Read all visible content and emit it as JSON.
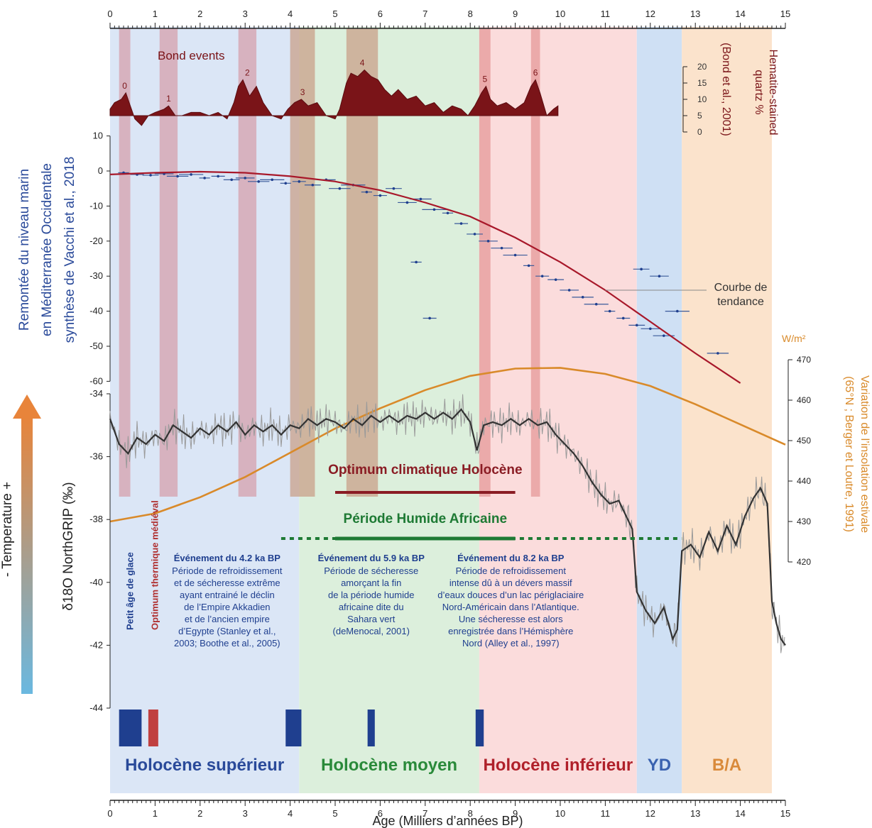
{
  "chart_data": {
    "type": "line",
    "age_axis": {
      "label": "Age (Milliers d’années BP)",
      "range": [
        0,
        15
      ],
      "ticks": [
        "0",
        "1",
        "2",
        "3",
        "4",
        "5",
        "6",
        "7",
        "8",
        "9",
        "10",
        "11",
        "12",
        "13",
        "14",
        "15"
      ]
    },
    "periods": [
      {
        "label": "Holocène supérieur",
        "from": 0,
        "to": 4.2,
        "color": "#dbe6f6",
        "text_color": "#2a4a9a"
      },
      {
        "label": "Holocène moyen",
        "from": 4.2,
        "to": 8.2,
        "color": "#dcefdc",
        "text_color": "#2a8a3a"
      },
      {
        "label": "Holocène inférieur",
        "from": 8.2,
        "to": 11.7,
        "color": "#fbdcdc",
        "text_color": "#b0202a"
      },
      {
        "label": "YD",
        "from": 11.7,
        "to": 12.7,
        "color": "#cfe0f4",
        "text_color": "#3a62b0"
      },
      {
        "label": "B/A",
        "from": 12.7,
        "to": 14.7,
        "color": "#fbe3cc",
        "text_color": "#d98a3a"
      }
    ],
    "bond_events": {
      "title": "Bond events",
      "axis_label": "Hematite-stained quartz %",
      "axis_source": "(Bond et al., 2001)",
      "ticks": [
        "0",
        "5",
        "10",
        "15",
        "20"
      ],
      "events": [
        {
          "label": "0",
          "from": 0.2,
          "to": 0.45,
          "peak": 12
        },
        {
          "label": "1",
          "from": 1.1,
          "to": 1.5,
          "peak": 8
        },
        {
          "label": "2",
          "from": 2.85,
          "to": 3.25,
          "peak": 16
        },
        {
          "label": "3",
          "from": 4.0,
          "to": 4.55,
          "peak": 10
        },
        {
          "label": "4",
          "from": 5.25,
          "to": 5.95,
          "peak": 19
        },
        {
          "label": "5",
          "from": 8.2,
          "to": 8.45,
          "peak": 14
        },
        {
          "label": "6",
          "from": 9.35,
          "to": 9.55,
          "peak": 16
        }
      ],
      "series": [
        [
          0.0,
          7
        ],
        [
          0.1,
          9
        ],
        [
          0.25,
          10
        ],
        [
          0.35,
          12
        ],
        [
          0.45,
          8
        ],
        [
          0.55,
          4
        ],
        [
          0.7,
          2
        ],
        [
          0.85,
          5
        ],
        [
          1.0,
          6
        ],
        [
          1.2,
          7
        ],
        [
          1.3,
          8
        ],
        [
          1.45,
          5
        ],
        [
          1.6,
          5
        ],
        [
          1.8,
          6
        ],
        [
          2.0,
          6
        ],
        [
          2.2,
          5
        ],
        [
          2.4,
          6
        ],
        [
          2.6,
          4
        ],
        [
          2.75,
          9
        ],
        [
          2.85,
          14
        ],
        [
          2.95,
          16
        ],
        [
          3.1,
          11
        ],
        [
          3.25,
          14
        ],
        [
          3.4,
          9
        ],
        [
          3.6,
          5
        ],
        [
          3.8,
          4
        ],
        [
          3.95,
          7
        ],
        [
          4.1,
          9
        ],
        [
          4.25,
          10
        ],
        [
          4.4,
          8
        ],
        [
          4.6,
          9
        ],
        [
          4.8,
          5
        ],
        [
          5.0,
          4
        ],
        [
          5.1,
          7
        ],
        [
          5.25,
          15
        ],
        [
          5.35,
          18
        ],
        [
          5.5,
          17
        ],
        [
          5.65,
          19
        ],
        [
          5.8,
          17
        ],
        [
          5.95,
          16
        ],
        [
          6.1,
          13
        ],
        [
          6.25,
          11
        ],
        [
          6.4,
          13
        ],
        [
          6.6,
          10
        ],
        [
          6.8,
          11
        ],
        [
          7.0,
          8
        ],
        [
          7.2,
          9
        ],
        [
          7.4,
          6
        ],
        [
          7.6,
          8
        ],
        [
          7.8,
          7
        ],
        [
          7.95,
          5
        ],
        [
          8.1,
          8
        ],
        [
          8.25,
          12
        ],
        [
          8.35,
          14
        ],
        [
          8.45,
          10
        ],
        [
          8.6,
          8
        ],
        [
          8.8,
          9
        ],
        [
          9.0,
          7
        ],
        [
          9.2,
          9
        ],
        [
          9.35,
          14
        ],
        [
          9.45,
          16
        ],
        [
          9.55,
          12
        ],
        [
          9.7,
          5
        ],
        [
          9.85,
          7
        ],
        [
          9.95,
          8
        ]
      ]
    },
    "sea_level": {
      "label_lines": [
        "Remontée du niveau marin",
        "en Méditerranée Occidentale",
        "synthèse de Vacchi et al., 2018"
      ],
      "ticks": [
        "10",
        "0",
        "-10",
        "-20",
        "-30",
        "-40",
        "-50",
        "-60"
      ],
      "range": [
        -60,
        10
      ],
      "trend_label_lines": [
        "Courbe de",
        "tendance"
      ],
      "trend": [
        [
          0.0,
          -1
        ],
        [
          1,
          -0.5
        ],
        [
          2,
          -0.2
        ],
        [
          3,
          -0.5
        ],
        [
          4,
          -1.5
        ],
        [
          5,
          -3
        ],
        [
          6,
          -5.5
        ],
        [
          7,
          -9
        ],
        [
          8,
          -13
        ],
        [
          9,
          -19
        ],
        [
          10,
          -26
        ],
        [
          11,
          -34
        ],
        [
          12,
          -43
        ],
        [
          13,
          -52
        ],
        [
          14,
          -60.5
        ]
      ],
      "observations": [
        [
          0.3,
          -0.5
        ],
        [
          0.6,
          -1
        ],
        [
          0.9,
          -1.2
        ],
        [
          1.2,
          -0.8
        ],
        [
          1.5,
          -1.5
        ],
        [
          1.8,
          -1
        ],
        [
          2.1,
          -2
        ],
        [
          2.4,
          -1.5
        ],
        [
          2.7,
          -2.5
        ],
        [
          3.0,
          -2
        ],
        [
          3.3,
          -3
        ],
        [
          3.6,
          -2.5
        ],
        [
          3.9,
          -3.5
        ],
        [
          4.2,
          -3
        ],
        [
          4.5,
          -4
        ],
        [
          4.8,
          -2.5
        ],
        [
          5.1,
          -5
        ],
        [
          5.4,
          -4
        ],
        [
          5.7,
          -6
        ],
        [
          6.0,
          -7
        ],
        [
          6.3,
          -5
        ],
        [
          6.6,
          -9
        ],
        [
          6.9,
          -8
        ],
        [
          7.2,
          -11
        ],
        [
          7.5,
          -12
        ],
        [
          7.8,
          -15
        ],
        [
          8.1,
          -18
        ],
        [
          8.4,
          -20
        ],
        [
          8.7,
          -22
        ],
        [
          9.0,
          -24
        ],
        [
          9.3,
          -27
        ],
        [
          9.6,
          -30
        ],
        [
          9.9,
          -31
        ],
        [
          10.2,
          -34
        ],
        [
          10.5,
          -36
        ],
        [
          10.8,
          -38
        ],
        [
          11.1,
          -40
        ],
        [
          11.4,
          -42
        ],
        [
          11.7,
          -44
        ],
        [
          12.0,
          -45
        ],
        [
          12.3,
          -47
        ],
        [
          12.6,
          -40
        ],
        [
          6.8,
          -26
        ],
        [
          7.1,
          -42
        ],
        [
          11.8,
          -28
        ],
        [
          12.2,
          -30
        ],
        [
          13.5,
          -52
        ]
      ]
    },
    "ngrip": {
      "label": "δ18O NorthGRIP (‰)",
      "ticks": [
        "-34",
        "-36",
        "-38",
        "-40",
        "-42",
        "-44"
      ],
      "range": [
        -44,
        -34
      ],
      "series": [
        [
          0.0,
          -34.8
        ],
        [
          0.2,
          -35.6
        ],
        [
          0.4,
          -35.9
        ],
        [
          0.6,
          -35.4
        ],
        [
          0.8,
          -35.6
        ],
        [
          1.0,
          -35.3
        ],
        [
          1.2,
          -35.5
        ],
        [
          1.4,
          -35.0
        ],
        [
          1.6,
          -35.2
        ],
        [
          1.8,
          -35.4
        ],
        [
          2.0,
          -35.1
        ],
        [
          2.2,
          -35.3
        ],
        [
          2.4,
          -35.0
        ],
        [
          2.6,
          -35.2
        ],
        [
          2.8,
          -34.9
        ],
        [
          3.0,
          -35.3
        ],
        [
          3.2,
          -35.0
        ],
        [
          3.4,
          -35.2
        ],
        [
          3.6,
          -35.0
        ],
        [
          3.8,
          -35.3
        ],
        [
          4.0,
          -35.0
        ],
        [
          4.2,
          -35.1
        ],
        [
          4.4,
          -34.8
        ],
        [
          4.6,
          -35.0
        ],
        [
          4.8,
          -34.8
        ],
        [
          5.0,
          -34.9
        ],
        [
          5.2,
          -35.1
        ],
        [
          5.4,
          -34.8
        ],
        [
          5.6,
          -35.0
        ],
        [
          5.8,
          -34.7
        ],
        [
          6.0,
          -34.9
        ],
        [
          6.2,
          -34.7
        ],
        [
          6.4,
          -34.9
        ],
        [
          6.6,
          -34.7
        ],
        [
          6.8,
          -34.8
        ],
        [
          7.0,
          -34.6
        ],
        [
          7.2,
          -34.8
        ],
        [
          7.4,
          -34.6
        ],
        [
          7.6,
          -34.8
        ],
        [
          7.8,
          -34.5
        ],
        [
          8.0,
          -34.9
        ],
        [
          8.15,
          -35.8
        ],
        [
          8.3,
          -35.0
        ],
        [
          8.5,
          -34.9
        ],
        [
          8.7,
          -35.0
        ],
        [
          8.9,
          -34.8
        ],
        [
          9.1,
          -35.0
        ],
        [
          9.3,
          -34.8
        ],
        [
          9.5,
          -35.0
        ],
        [
          9.7,
          -34.9
        ],
        [
          9.9,
          -35.3
        ],
        [
          10.1,
          -35.6
        ],
        [
          10.3,
          -35.9
        ],
        [
          10.5,
          -36.3
        ],
        [
          10.7,
          -36.8
        ],
        [
          10.9,
          -37.2
        ],
        [
          11.1,
          -37.5
        ],
        [
          11.3,
          -37.4
        ],
        [
          11.5,
          -38.0
        ],
        [
          11.6,
          -38.3
        ],
        [
          11.7,
          -40.3
        ],
        [
          11.9,
          -40.9
        ],
        [
          12.1,
          -41.3
        ],
        [
          12.3,
          -40.8
        ],
        [
          12.5,
          -41.8
        ],
        [
          12.6,
          -41.5
        ],
        [
          12.7,
          -39.0
        ],
        [
          12.9,
          -38.8
        ],
        [
          13.1,
          -39.2
        ],
        [
          13.3,
          -38.4
        ],
        [
          13.5,
          -39.0
        ],
        [
          13.7,
          -38.2
        ],
        [
          13.9,
          -38.8
        ],
        [
          14.1,
          -37.9
        ],
        [
          14.3,
          -37.3
        ],
        [
          14.45,
          -37.0
        ],
        [
          14.6,
          -37.5
        ],
        [
          14.7,
          -40.6
        ],
        [
          14.8,
          -41.3
        ],
        [
          14.9,
          -41.8
        ],
        [
          15.0,
          -42.0
        ]
      ]
    },
    "insolation": {
      "unit": "W/m²",
      "label_lines": [
        "Variation de l’insolation estivale",
        "(65°N ; Berger et Loutre, 1991)"
      ],
      "ticks": [
        "470",
        "460",
        "450",
        "440",
        "430",
        "420"
      ],
      "range": [
        420,
        470
      ],
      "series": [
        [
          0,
          430
        ],
        [
          1,
          432
        ],
        [
          2,
          436
        ],
        [
          3,
          441
        ],
        [
          4,
          447
        ],
        [
          5,
          453
        ],
        [
          6,
          458
        ],
        [
          7,
          462.5
        ],
        [
          8,
          466
        ],
        [
          9,
          467.8
        ],
        [
          10,
          468
        ],
        [
          11,
          466.5
        ],
        [
          12,
          463.5
        ],
        [
          13,
          459
        ],
        [
          14,
          454
        ],
        [
          15,
          449
        ]
      ]
    },
    "temperature_label": "- Temperature +",
    "bars": [
      {
        "label": "Optimum climatique Holocène",
        "from": 5.0,
        "to": 9.0,
        "color": "#8a1c24",
        "style": "solid"
      },
      {
        "label": "Période Humide Africaine",
        "from": 5.0,
        "to": 9.0,
        "color": "#1e7a34",
        "style": "solid",
        "dashed_from": 3.8,
        "dashed_to": 12.7
      }
    ],
    "events": [
      {
        "title": "Événement du 4.2 ka BP",
        "lines": [
          "Période de refroidissement",
          "et de sécheresse extrême",
          "ayant entrainé le déclin",
          "de l’Empire Akkadien",
          "et de l’ancien empire",
          "d’Egypte (Stanley et al.,",
          "2003; Boothe et al., 2005)"
        ],
        "center": 2.6
      },
      {
        "title": "Événement du 5.9 ka BP",
        "lines": [
          "Période de sécheresse",
          "amorçant la fin",
          "de la période humide",
          "africaine dite du",
          "Sahara vert",
          "(deMenocal, 2001)"
        ],
        "center": 5.8
      },
      {
        "title": "Événement du 8.2 ka BP",
        "lines": [
          "Période de refroidissement",
          "intense dû à un dévers massif",
          "d’eaux douces d’un lac périglaciaire",
          "Nord-Américain dans l’Atlantique.",
          "Une sécheresse est alors",
          "enregistrée dans l’Hémisphère",
          "Nord (Alley et al., 1997)"
        ],
        "center": 8.9
      }
    ],
    "period_labels_vertical": [
      {
        "label": "Petit âge de glace",
        "at": 0.45,
        "color": "#1f3f8f"
      },
      {
        "label": "Optimum thermique médiéval",
        "at": 1.0,
        "color": "#b03030"
      }
    ],
    "event_bars": [
      {
        "from": 0.2,
        "to": 0.7,
        "color": "#1f3f8f"
      },
      {
        "from": 0.85,
        "to": 1.07,
        "color": "#c04040"
      },
      {
        "from": 3.9,
        "to": 4.25,
        "color": "#1f3f8f"
      },
      {
        "from": 5.72,
        "to": 5.88,
        "color": "#1f3f8f"
      },
      {
        "from": 8.12,
        "to": 8.3,
        "color": "#1f3f8f"
      }
    ]
  }
}
